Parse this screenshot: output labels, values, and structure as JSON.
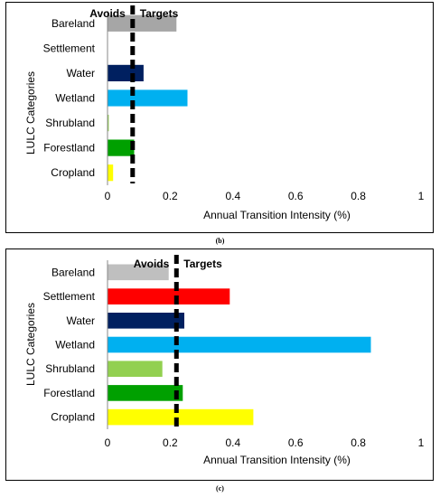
{
  "chart_data": [
    {
      "type": "bar",
      "orientation": "horizontal",
      "panel": "(b)",
      "categories": [
        "Bareland",
        "Settlement",
        "Water",
        "Wetland",
        "Shrubland",
        "Forestland",
        "Cropland"
      ],
      "values": [
        0.22,
        0.0,
        0.115,
        0.255,
        0.004,
        0.085,
        0.018
      ],
      "colors": [
        "#a6a6a6",
        "#ff0000",
        "#002060",
        "#00b0f0",
        "#92d050",
        "#00a000",
        "#ffff00"
      ],
      "xlabel": "Annual Transition Intensity (%)",
      "ylabel": "LULC Categories",
      "xlim": [
        0,
        1
      ],
      "xticks": [
        "0",
        "0.2",
        "0.4",
        "0.6",
        "0.8",
        "1"
      ],
      "uniform_intensity": 0.08,
      "annotations": {
        "left": "Avoids",
        "right": "Targets"
      },
      "grid": false
    },
    {
      "type": "bar",
      "orientation": "horizontal",
      "panel": "(c)",
      "categories": [
        "Bareland",
        "Settlement",
        "Water",
        "Wetland",
        "Shrubland",
        "Forestland",
        "Cropland"
      ],
      "values": [
        0.195,
        0.39,
        0.245,
        0.84,
        0.175,
        0.24,
        0.465
      ],
      "colors": [
        "#bfbfbf",
        "#ff0000",
        "#002060",
        "#00b0f0",
        "#92d050",
        "#00a000",
        "#ffff00"
      ],
      "xlabel": "Annual Transition Intensity (%)",
      "ylabel": "LULC Categories",
      "xlim": [
        0,
        1
      ],
      "xticks": [
        "0",
        "0.2",
        "0.4",
        "0.6",
        "0.8",
        "1"
      ],
      "uniform_intensity": 0.22,
      "annotations": {
        "left": "Avoids",
        "right": "Targets"
      },
      "grid": false
    }
  ]
}
